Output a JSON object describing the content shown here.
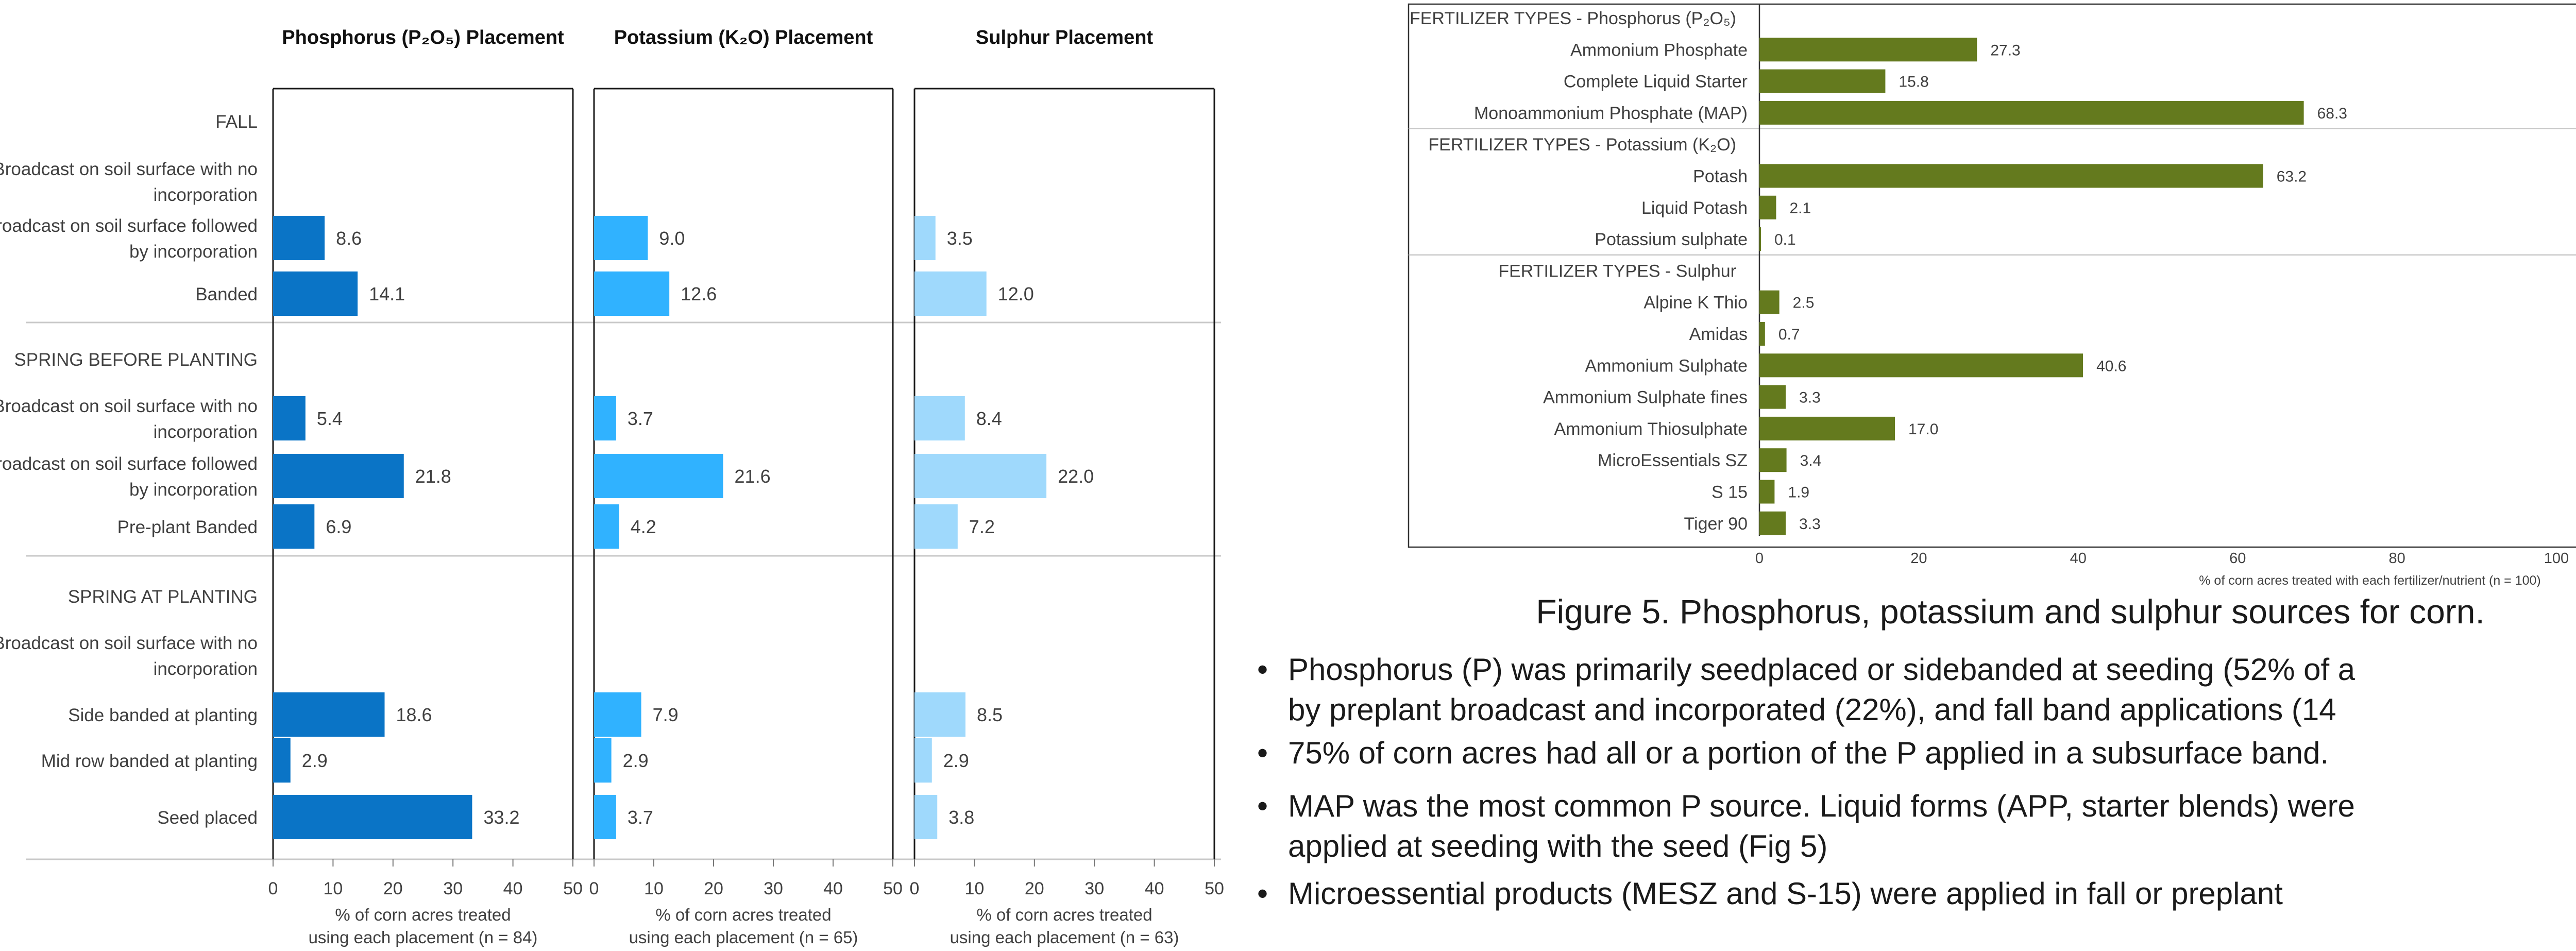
{
  "chart_data": [
    {
      "type": "bar",
      "title": "Phosphorus (P₂O₅) Placement",
      "xlabel": [
        "% of corn acres treated",
        "using each placement (n = 84)"
      ],
      "xlim": [
        0,
        50
      ],
      "xticks": [
        "0",
        "10",
        "20",
        "30",
        "40",
        "50"
      ],
      "color": "#0a74c6",
      "values": [
        null,
        null,
        8.6,
        14.1,
        null,
        5.4,
        21.8,
        6.9,
        null,
        null,
        18.6,
        2.9,
        33.2
      ],
      "labels": [
        "",
        "",
        "8.6",
        "14.1",
        "",
        "5.4",
        "21.8",
        "6.9",
        "",
        "",
        "18.6",
        "2.9",
        "33.2"
      ]
    },
    {
      "type": "bar",
      "title": "Potassium (K₂O) Placement",
      "xlabel": [
        "% of corn acres treated",
        "using each placement (n = 65)"
      ],
      "xlim": [
        0,
        50
      ],
      "xticks": [
        "0",
        "10",
        "20",
        "30",
        "40",
        "50"
      ],
      "color": "#30b2ff",
      "values": [
        null,
        null,
        9.0,
        12.6,
        null,
        3.7,
        21.6,
        4.2,
        null,
        null,
        7.9,
        2.9,
        3.7
      ],
      "labels": [
        "",
        "",
        "9.0",
        "12.6",
        "",
        "3.7",
        "21.6",
        "4.2",
        "",
        "",
        "7.9",
        "2.9",
        "3.7"
      ]
    },
    {
      "type": "bar",
      "title": "Sulphur Placement",
      "xlabel": [
        "% of corn acres treated",
        "using each placement (n = 63)"
      ],
      "xlim": [
        0,
        50
      ],
      "xticks": [
        "0",
        "10",
        "20",
        "30",
        "40",
        "50"
      ],
      "color": "#9fd9fc",
      "values": [
        null,
        null,
        3.5,
        12.0,
        null,
        8.4,
        22.0,
        7.2,
        null,
        null,
        8.5,
        2.9,
        3.8
      ],
      "labels": [
        "",
        "",
        "3.5",
        "12.0",
        "",
        "8.4",
        "22.0",
        "7.2",
        "",
        "",
        "8.5",
        "2.9",
        "3.8"
      ]
    },
    {
      "type": "bar",
      "title": "",
      "xlabel": "% of corn acres treated with each fertilizer/nutrient (n = 100)",
      "xlim": [
        0,
        100
      ],
      "xticks": [
        "0",
        "20",
        "40",
        "60",
        "80",
        "100"
      ],
      "color": "#647a1e",
      "categories": [
        "FERTILIZER TYPES - Phosphorus (P₂O₅)",
        "Ammonium Phosphate",
        "Complete Liquid Starter",
        "Monoammonium Phosphate (MAP)",
        "FERTILIZER TYPES - Potassium (K₂O)",
        "Potash",
        "Liquid Potash",
        "Potassium sulphate",
        "FERTILIZER TYPES - Sulphur",
        "Alpine K Thio",
        "Amidas",
        "Ammonium Sulphate",
        "Ammonium Sulphate fines",
        "Ammonium Thiosulphate",
        "MicroEssentials SZ",
        "S 15",
        "Tiger 90"
      ],
      "values": [
        null,
        27.3,
        15.8,
        68.3,
        null,
        63.2,
        2.1,
        0.1,
        null,
        2.5,
        0.7,
        40.6,
        3.3,
        17.0,
        3.4,
        1.9,
        3.3
      ],
      "labels": [
        "",
        "27.3",
        "15.8",
        "68.3",
        "",
        "63.2",
        "2.1",
        "0.1",
        "",
        "2.5",
        "0.7",
        "40.6",
        "3.3",
        "17.0",
        "3.4",
        "1.9",
        "3.3"
      ]
    }
  ],
  "placement_rows": [
    [
      "FALL"
    ],
    [
      "Broadcast on soil surface with no",
      "incorporation"
    ],
    [
      "Broadcast on soil surface followed",
      "by incorporation"
    ],
    [
      "Banded"
    ],
    [
      "SPRING BEFORE PLANTING"
    ],
    [
      "Broadcast on soil surface with no",
      "incorporation"
    ],
    [
      "Broadcast on soil surface followed",
      "by incorporation"
    ],
    [
      "Pre-plant Banded"
    ],
    [
      "SPRING AT PLANTING"
    ],
    [
      "Broadcast on soil surface with no",
      "incorporation"
    ],
    [
      "Side banded at planting"
    ],
    [
      "Mid row banded at planting"
    ],
    [
      "Seed placed"
    ]
  ],
  "figure_caption": "Figure 5. Phosphorus, potassium and sulphur sources for corn.",
  "bullets": [
    [
      "Phosphorus (P) was primarily seedplaced or sidebanded at seeding (52% of a",
      "by  preplant broadcast and incorporated (22%), and fall band applications (14"
    ],
    [
      "75% of corn acres had all or a portion of the P applied in a subsurface band."
    ],
    [
      "MAP was the most common P source. Liquid forms (APP, starter blends) were",
      "applied at seeding with the seed (Fig 5)"
    ],
    [
      "Microessential products (MESZ and S-15) were applied in fall or preplant"
    ]
  ]
}
